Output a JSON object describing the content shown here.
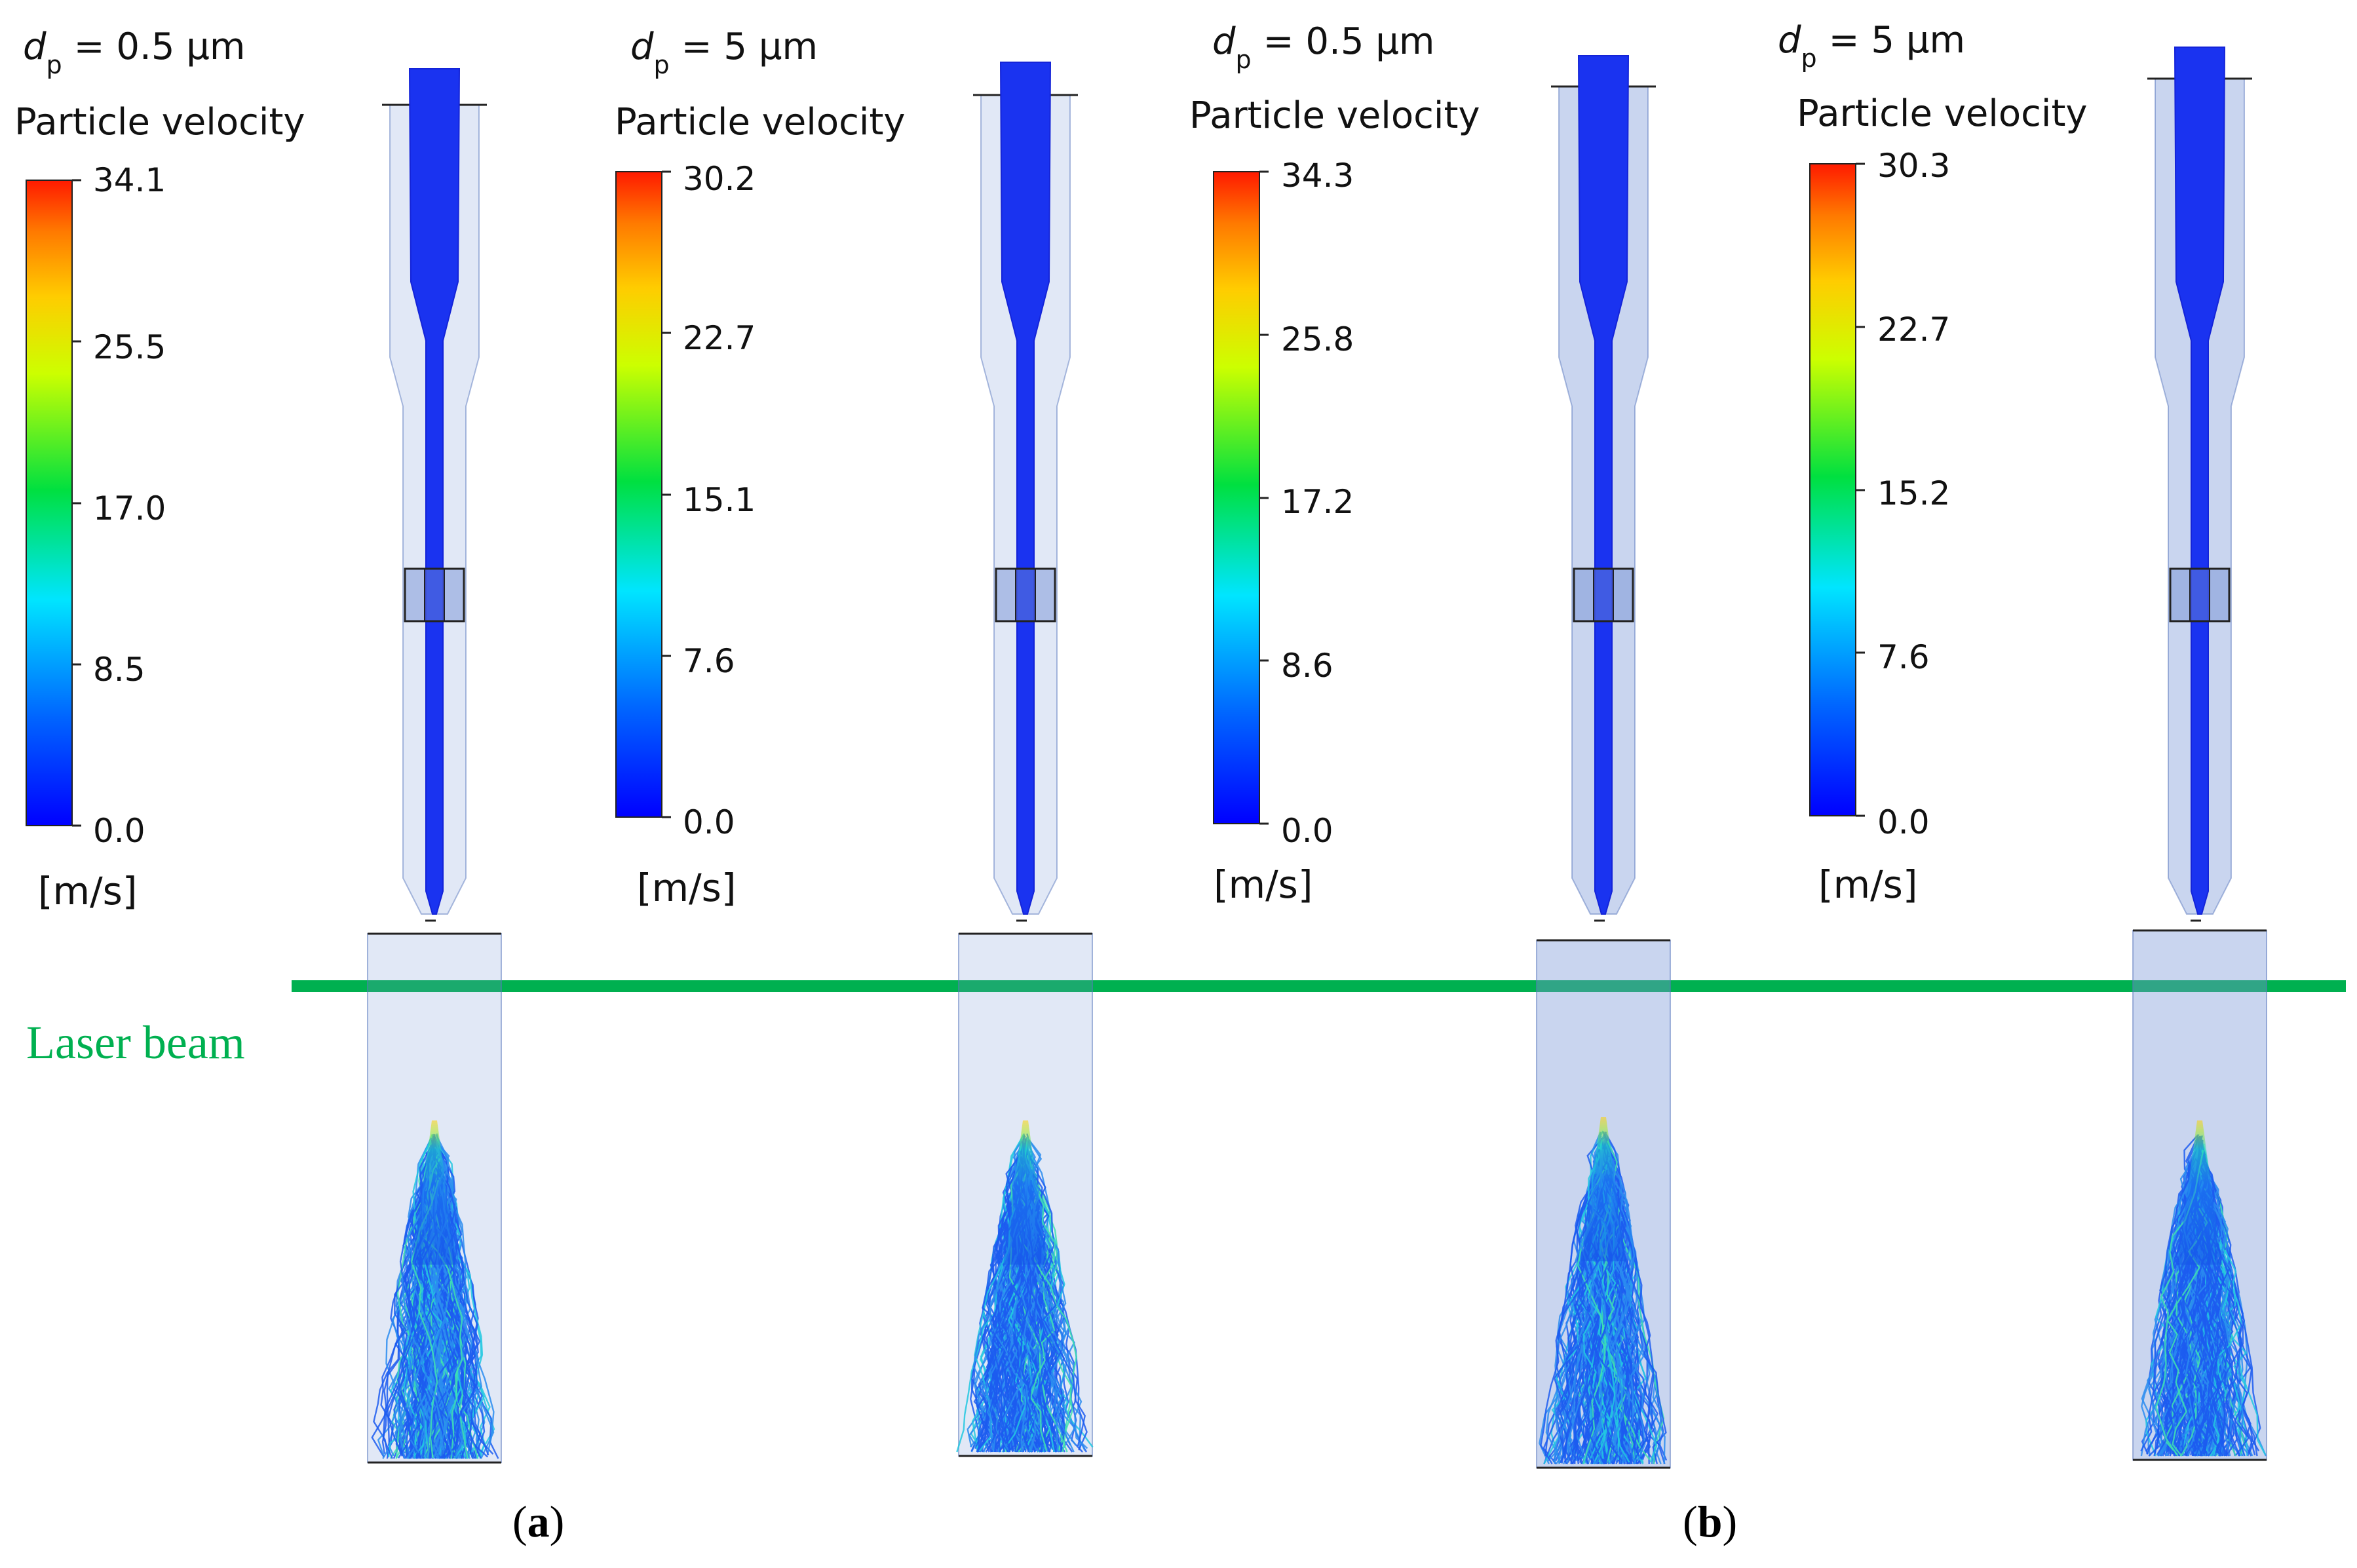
{
  "figure": {
    "panels": [
      {
        "id": "a-left",
        "title_symbol": "d",
        "title_subscript": "p",
        "title_value": "= 0.5 μm",
        "legend_title": "Particle velocity",
        "ticks": [
          "34.1",
          "25.5",
          "17.0",
          "8.5",
          "0.0"
        ],
        "unit": "[m/s]"
      },
      {
        "id": "a-right",
        "title_symbol": "d",
        "title_subscript": "p",
        "title_value": "= 5 μm",
        "legend_title": "Particle velocity",
        "ticks": [
          "30.2",
          "22.7",
          "15.1",
          "7.6",
          "0.0"
        ],
        "unit": "[m/s]"
      },
      {
        "id": "b-left",
        "title_symbol": "d",
        "title_subscript": "p",
        "title_value": "= 0.5 μm",
        "legend_title": "Particle velocity",
        "ticks": [
          "34.3",
          "25.8",
          "17.2",
          "8.6",
          "0.0"
        ],
        "unit": "[m/s]"
      },
      {
        "id": "b-right",
        "title_symbol": "d",
        "title_subscript": "p",
        "title_value": "= 5 μm",
        "legend_title": "Particle velocity",
        "ticks": [
          "30.3",
          "22.7",
          "15.2",
          "7.6",
          "0.0"
        ],
        "unit": "[m/s]"
      }
    ],
    "laser_label": "Laser beam",
    "laser_color": "#00b050",
    "labels": {
      "a": {
        "open": "(",
        "letter": "a",
        "close": ")"
      },
      "b": {
        "open": "(",
        "letter": "b",
        "close": ")"
      }
    }
  }
}
